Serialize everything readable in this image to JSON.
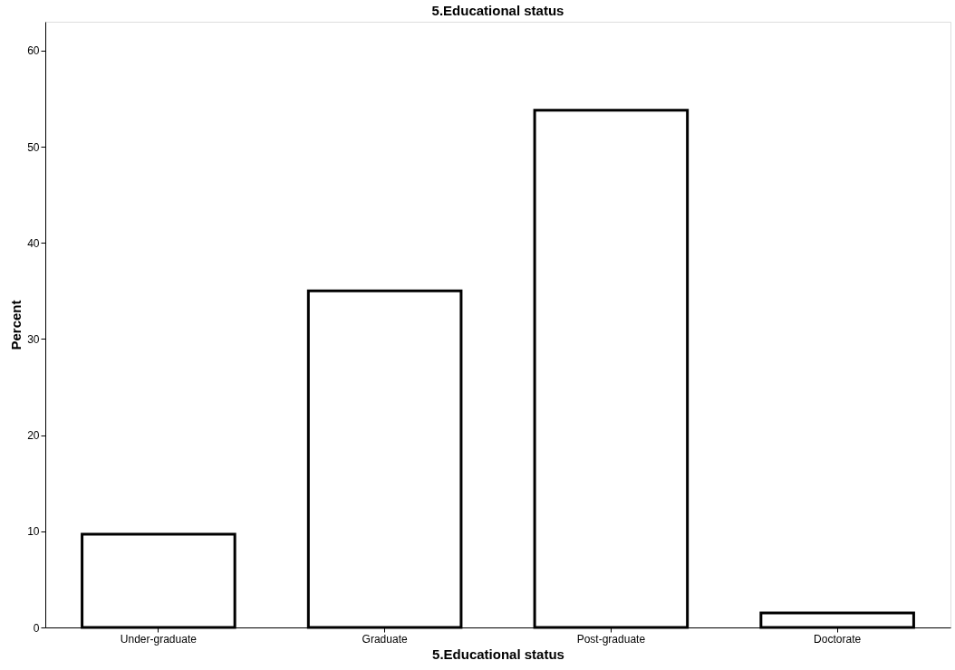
{
  "chart_data": {
    "type": "bar",
    "title": "5.Educational status",
    "xlabel": "5.Educational status",
    "ylabel": "Percent",
    "categories": [
      "Under-graduate",
      "Graduate",
      "Post-graduate",
      "Doctorate"
    ],
    "values": [
      9.7,
      35.0,
      53.8,
      1.5
    ],
    "color": "#ffffff",
    "ylim": [
      0,
      63
    ],
    "yticks": [
      0,
      10,
      20,
      30,
      40,
      50,
      60
    ],
    "grid": false
  }
}
